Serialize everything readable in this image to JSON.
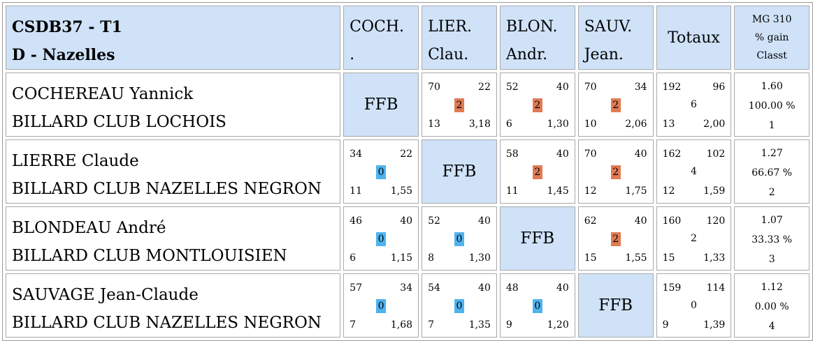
{
  "header": {
    "title_line1": "CSDB37 - T1",
    "title_line2": "D - Nazelles",
    "columns": [
      {
        "line1": "COCH.",
        "line2": "."
      },
      {
        "line1": "LIER.",
        "line2": "Clau."
      },
      {
        "line1": "BLON.",
        "line2": "Andr."
      },
      {
        "line1": "SAUV.",
        "line2": "Jean."
      }
    ],
    "totals": "Totaux",
    "mg_line1": "MG 310",
    "mg_line2": "% gain",
    "mg_line3": "Classt"
  },
  "ffb_label": "FFB",
  "rows": [
    {
      "name": "COCHEREAU Yannick",
      "club": "BILLARD CLUB LOCHOIS",
      "cells": [
        null,
        {
          "tl": "70",
          "tr": "22",
          "pts": "2",
          "bl": "13",
          "br": "3,18"
        },
        {
          "tl": "52",
          "tr": "40",
          "pts": "2",
          "bl": "6",
          "br": "1,30"
        },
        {
          "tl": "70",
          "tr": "34",
          "pts": "2",
          "bl": "10",
          "br": "2,06"
        }
      ],
      "totals": {
        "tl": "192",
        "tr": "96",
        "mid": "6",
        "bl": "13",
        "br": "2,00"
      },
      "mg": {
        "avg": "1.60",
        "pct": "100.00 %",
        "rank": "1"
      }
    },
    {
      "name": "LIERRE Claude",
      "club": "BILLARD CLUB NAZELLES NEGRON",
      "cells": [
        {
          "tl": "34",
          "tr": "22",
          "pts": "0",
          "bl": "11",
          "br": "1,55"
        },
        null,
        {
          "tl": "58",
          "tr": "40",
          "pts": "2",
          "bl": "11",
          "br": "1,45"
        },
        {
          "tl": "70",
          "tr": "40",
          "pts": "2",
          "bl": "12",
          "br": "1,75"
        }
      ],
      "totals": {
        "tl": "162",
        "tr": "102",
        "mid": "4",
        "bl": "12",
        "br": "1,59"
      },
      "mg": {
        "avg": "1.27",
        "pct": "66.67 %",
        "rank": "2"
      }
    },
    {
      "name": "BLONDEAU André",
      "club": "BILLARD CLUB MONTLOUISIEN",
      "cells": [
        {
          "tl": "46",
          "tr": "40",
          "pts": "0",
          "bl": "6",
          "br": "1,15"
        },
        {
          "tl": "52",
          "tr": "40",
          "pts": "0",
          "bl": "8",
          "br": "1,30"
        },
        null,
        {
          "tl": "62",
          "tr": "40",
          "pts": "2",
          "bl": "15",
          "br": "1,55"
        }
      ],
      "totals": {
        "tl": "160",
        "tr": "120",
        "mid": "2",
        "bl": "15",
        "br": "1,33"
      },
      "mg": {
        "avg": "1.07",
        "pct": "33.33 %",
        "rank": "3"
      }
    },
    {
      "name": "SAUVAGE Jean-Claude",
      "club": "BILLARD CLUB NAZELLES NEGRON",
      "cells": [
        {
          "tl": "57",
          "tr": "34",
          "pts": "0",
          "bl": "7",
          "br": "1,68"
        },
        {
          "tl": "54",
          "tr": "40",
          "pts": "0",
          "bl": "7",
          "br": "1,35"
        },
        {
          "tl": "48",
          "tr": "40",
          "pts": "0",
          "bl": "9",
          "br": "1,20"
        },
        null
      ],
      "totals": {
        "tl": "159",
        "tr": "114",
        "mid": "0",
        "bl": "9",
        "br": "1,39"
      },
      "mg": {
        "avg": "1.12",
        "pct": "0.00 %",
        "rank": "4"
      }
    }
  ],
  "colors": {
    "header_bg": "#cfe2f8",
    "win_badge": "#e07b54",
    "loss_badge": "#4fb3ee"
  }
}
